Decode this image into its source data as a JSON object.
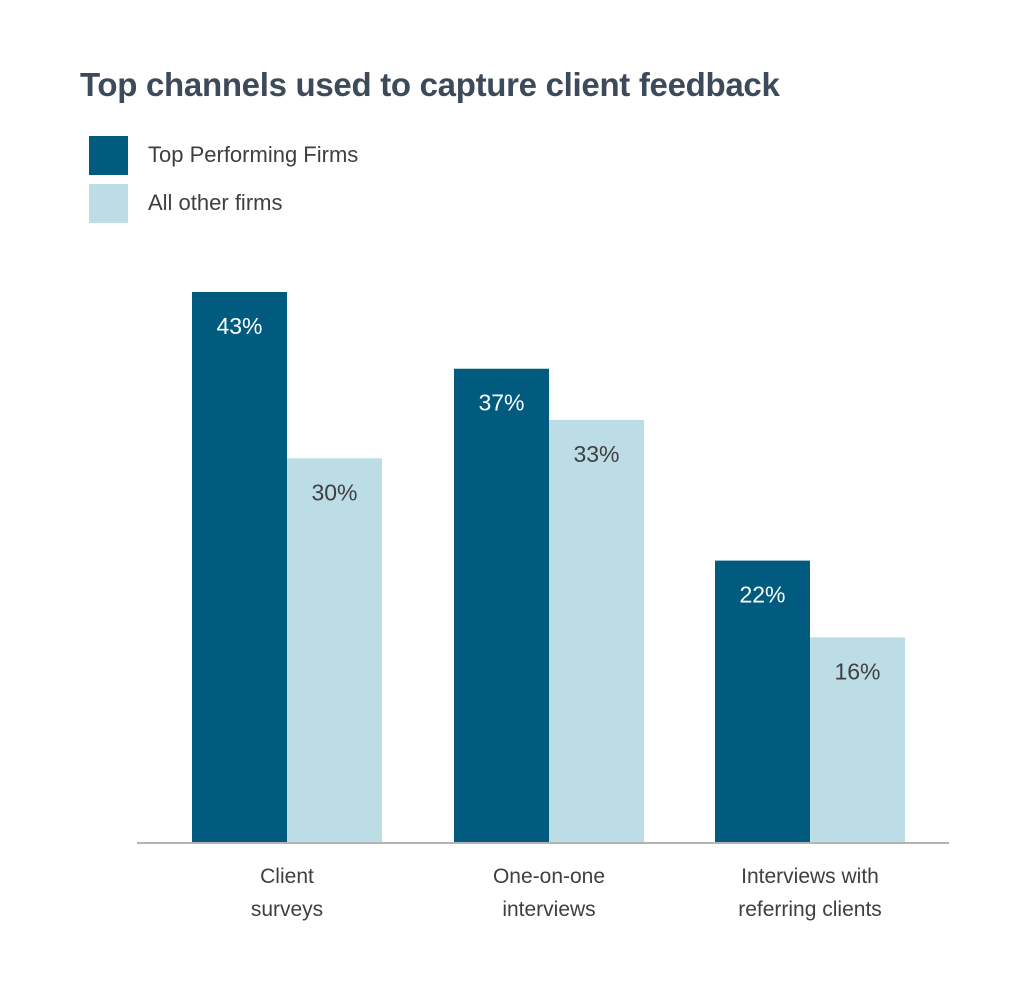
{
  "chart_data": {
    "type": "bar",
    "title": "Top channels used to capture client feedback",
    "categories": [
      [
        "Client",
        "surveys"
      ],
      [
        "One-on-one",
        "interviews"
      ],
      [
        "Interviews with",
        "referring clients"
      ]
    ],
    "series": [
      {
        "name": "Top Performing Firms",
        "values": [
          43,
          37,
          22
        ],
        "labels": [
          "43%",
          "37%",
          "22%"
        ],
        "color": "#005b7f",
        "label_color": "#ffffff"
      },
      {
        "name": "All other firms",
        "values": [
          30,
          33,
          16
        ],
        "labels": [
          "30%",
          "33%",
          "16%"
        ],
        "color": "#bcdde6",
        "label_color": "#3f3f3f"
      }
    ],
    "ylim": [
      0,
      43
    ],
    "grid": false,
    "legend_position": "top-left",
    "axis_color": "#b3b3b3"
  }
}
